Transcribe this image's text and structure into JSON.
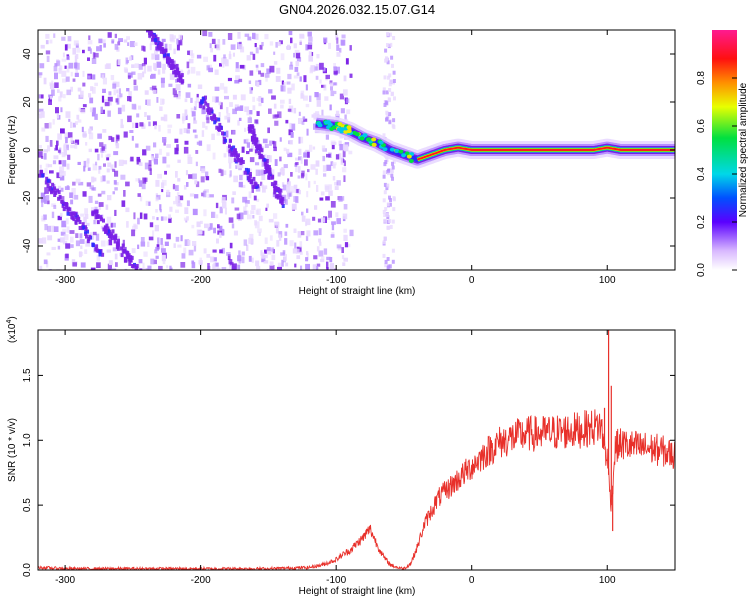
{
  "title": "GN04.2026.032.15.07.G14",
  "colorbar": {
    "label": "Normalized spectral amplitude",
    "ticks": [
      "0.0",
      "0.2",
      "0.4",
      "0.6",
      "0.8"
    ],
    "tick_values": [
      0.0,
      0.2,
      0.4,
      0.6,
      0.8
    ]
  },
  "chart_data": [
    {
      "type": "heatmap",
      "xlabel": "Height of straight line (km)",
      "ylabel": "Frequency (Hz)",
      "xlim": [
        -320,
        150
      ],
      "ylim": [
        -50,
        50
      ],
      "x_ticks": [
        -300,
        -200,
        -100,
        0,
        100
      ],
      "y_ticks": [
        -40,
        -20,
        0,
        20,
        40
      ],
      "x_tick_labels": [
        "-300",
        "-200",
        "-100",
        "0",
        "100"
      ],
      "y_tick_labels": [
        "-40",
        "-20",
        "0",
        "20",
        "40"
      ],
      "colormap": [
        "#e8d8ff",
        "#b890ff",
        "#7a1fe6",
        "#2b2bff",
        "#00c8e6",
        "#00e040",
        "#e8e800",
        "#ff9000",
        "#ff1a1a",
        "#ff1aa0"
      ],
      "ridge": {
        "x": [
          -115,
          -100,
          -90,
          -80,
          -70,
          -60,
          -50,
          -40,
          -30,
          -20,
          -10,
          0,
          20,
          50,
          90,
          100,
          110,
          150
        ],
        "y": [
          11,
          10,
          8,
          5,
          3,
          0,
          -2,
          -4,
          -2,
          0,
          1,
          0,
          0,
          0,
          0,
          1,
          0,
          0
        ]
      },
      "streaks": [
        {
          "x": [
            -240,
            -215
          ],
          "y": [
            52,
            30
          ]
        },
        {
          "x": [
            -200,
            -160
          ],
          "y": [
            22,
            -15
          ]
        },
        {
          "x": [
            -165,
            -140
          ],
          "y": [
            10,
            -22
          ]
        },
        {
          "x": [
            -320,
            -270
          ],
          "y": [
            -8,
            -45
          ]
        },
        {
          "x": [
            -280,
            -240
          ],
          "y": [
            -25,
            -55
          ]
        }
      ],
      "vertical_band_x": -62,
      "noise_region_x": [
        -320,
        -100
      ]
    },
    {
      "type": "line",
      "xlabel": "Height of straight line (km)",
      "ylabel": "SNR (10 * v/v)",
      "y_multiplier": "(x10",
      "y_multiplier_exp": "4",
      "xlim": [
        -320,
        150
      ],
      "ylim": [
        0,
        1.85
      ],
      "x_ticks": [
        -300,
        -200,
        -100,
        0,
        100
      ],
      "y_ticks": [
        0.0,
        0.5,
        1.0,
        1.5
      ],
      "x_tick_labels": [
        "-300",
        "-200",
        "-100",
        "0",
        "100"
      ],
      "y_tick_labels": [
        "0.0",
        "0.5",
        "1.0",
        "1.5"
      ],
      "color": "#e8302a",
      "series": [
        {
          "x": [
            -320,
            -300,
            -250,
            -200,
            -150,
            -120,
            -110,
            -100,
            -95,
            -90,
            -85,
            -80,
            -75,
            -70,
            -65,
            -60,
            -55,
            -50,
            -45,
            -40,
            -35,
            -30,
            -25,
            -20,
            -15,
            -10,
            -5,
            0,
            10,
            20,
            30,
            40,
            50,
            60,
            70,
            80,
            90,
            95,
            100,
            103,
            106,
            110,
            120,
            130,
            140,
            150
          ],
          "y": [
            0.02,
            0.01,
            0.01,
            0.01,
            0.01,
            0.02,
            0.04,
            0.08,
            0.12,
            0.15,
            0.2,
            0.25,
            0.32,
            0.2,
            0.1,
            0.04,
            0.02,
            0.01,
            0.05,
            0.18,
            0.35,
            0.45,
            0.55,
            0.6,
            0.65,
            0.7,
            0.75,
            0.8,
            0.9,
            0.98,
            1.02,
            1.05,
            1.05,
            1.06,
            1.07,
            1.08,
            1.1,
            1.12,
            0.85,
            0.5,
            0.95,
            0.97,
            0.95,
            0.94,
            0.92,
            0.88
          ]
        }
      ],
      "spikes": [
        {
          "x": 101,
          "y": 1.85
        },
        {
          "x": 103,
          "y": 1.42
        },
        {
          "x": 98,
          "y": 1.25
        },
        {
          "x": 104,
          "y": 0.3
        }
      ]
    }
  ]
}
